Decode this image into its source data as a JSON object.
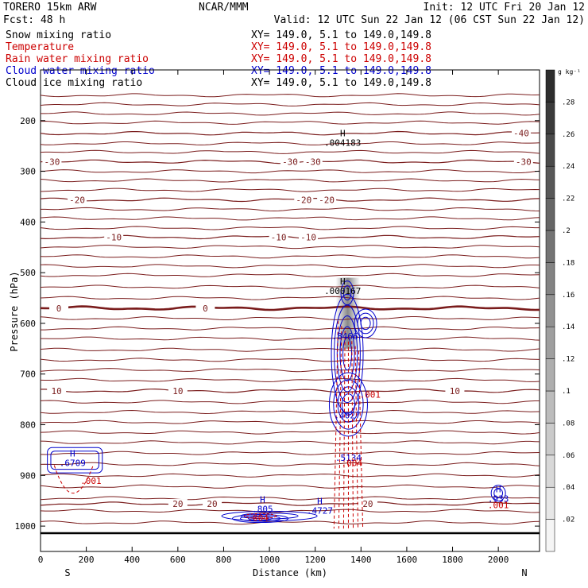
{
  "header": {
    "model": "TORERO  15km ARW",
    "org": "NCAR/MMM",
    "init": "Init: 12 UTC Fri 20 Jan 12",
    "fcst": "Fcst:   48 h",
    "valid": "Valid: 12 UTC Sun 22 Jan 12 (06 CST Sun 22 Jan 12)",
    "fields": [
      {
        "name": "Snow mixing ratio",
        "coords": "XY= 149.0,  5.1 to 149.0,149.8",
        "color": "#000000"
      },
      {
        "name": "Temperature",
        "coords": "XY= 149.0,  5.1 to 149.0,149.8",
        "color": "#cc0000"
      },
      {
        "name": "Rain water mixing ratio",
        "coords": "XY= 149.0,  5.1 to 149.0,149.8",
        "color": "#cc0000"
      },
      {
        "name": "Cloud water mixing ratio",
        "coords": "XY= 149.0,  5.1 to 149.0,149.8",
        "color": "#0000cc"
      },
      {
        "name": "Cloud ice mixing ratio",
        "coords": "XY= 149.0,  5.1 to 149.0,149.8",
        "color": "#000000"
      }
    ]
  },
  "chart_data": {
    "type": "cross-section",
    "xlabel": "Distance (km)",
    "ylabel": "Pressure (hPa)",
    "xlim": [
      0,
      2180
    ],
    "ylim": [
      1050,
      100
    ],
    "x_ticks": [
      0,
      200,
      400,
      600,
      800,
      1000,
      1200,
      1400,
      1600,
      1800,
      2000
    ],
    "y_ticks": [
      200,
      300,
      400,
      500,
      600,
      700,
      800,
      900,
      1000
    ],
    "x_end_labels": {
      "left": "S",
      "right": "N"
    },
    "colorbar": {
      "unit": "g kg⁻¹",
      "ticks": [
        ".02",
        ".04",
        ".06",
        ".08",
        ".1",
        ".12",
        ".14",
        ".16",
        ".18",
        ".2",
        ".22",
        ".24",
        ".26",
        ".28"
      ],
      "min": 0,
      "max": 0.3
    },
    "temperature_contours": [
      {
        "label": "-40",
        "p": 225,
        "label_x": [
          2100
        ]
      },
      {
        "label": "-30",
        "p": 281,
        "label_x": [
          50,
          1090,
          1190,
          2110
        ]
      },
      {
        "label": "-20",
        "p": 356,
        "label_x": [
          160,
          1150,
          1250
        ]
      },
      {
        "label": "-10",
        "p": 430,
        "label_x": [
          320,
          1040,
          1170
        ]
      },
      {
        "label": "0",
        "p": 570,
        "label_x": [
          80,
          720
        ]
      },
      {
        "label": "10",
        "p": 733,
        "label_x": [
          70,
          600,
          1810
        ]
      },
      {
        "label": "20",
        "p": 956,
        "label_x": [
          600,
          750,
          1430
        ]
      }
    ],
    "max_labels": [
      {
        "symbol": "H",
        "value": ".004183",
        "x": 1320,
        "p": 240,
        "color": "#000000"
      },
      {
        "symbol": "H",
        "value": ".000167",
        "x": 1320,
        "p": 533,
        "color": "#000000"
      },
      {
        "symbol": "",
        "value": ".8466",
        "x": 1330,
        "p": 622,
        "color": "#0000cc"
      },
      {
        "symbol": "",
        "value": ".001",
        "x": 1440,
        "p": 737,
        "color": "#cc0000"
      },
      {
        "symbol": "",
        "value": ".4027",
        "x": 1340,
        "p": 778,
        "color": "#0000cc"
      },
      {
        "symbol": "",
        "value": ".5134",
        "x": 1345,
        "p": 862,
        "color": "#0000cc"
      },
      {
        "symbol": "",
        "value": ".004",
        "x": 1360,
        "p": 872,
        "color": "#cc0000"
      },
      {
        "symbol": "H",
        "value": ".6709",
        "x": 140,
        "p": 872,
        "color": "#0000cc"
      },
      {
        "symbol": "",
        "value": ".001",
        "x": 220,
        "p": 907,
        "color": "#cc0000"
      },
      {
        "symbol": "H",
        "value": ".805",
        "x": 970,
        "p": 963,
        "color": "#0000cc"
      },
      {
        "symbol": "",
        "value": ".004",
        "x": 950,
        "p": 980,
        "color": "#cc0000"
      },
      {
        "symbol": "H",
        "value": ".4727",
        "x": 1220,
        "p": 966,
        "color": "#0000cc"
      },
      {
        "symbol": "H",
        "value": ".933",
        "x": 2000,
        "p": 943,
        "color": "#0000cc"
      },
      {
        "symbol": "",
        "value": ".001",
        "x": 2000,
        "p": 955,
        "color": "#cc0000"
      }
    ],
    "legend_placement": "top-left (text header)",
    "grid": false
  }
}
